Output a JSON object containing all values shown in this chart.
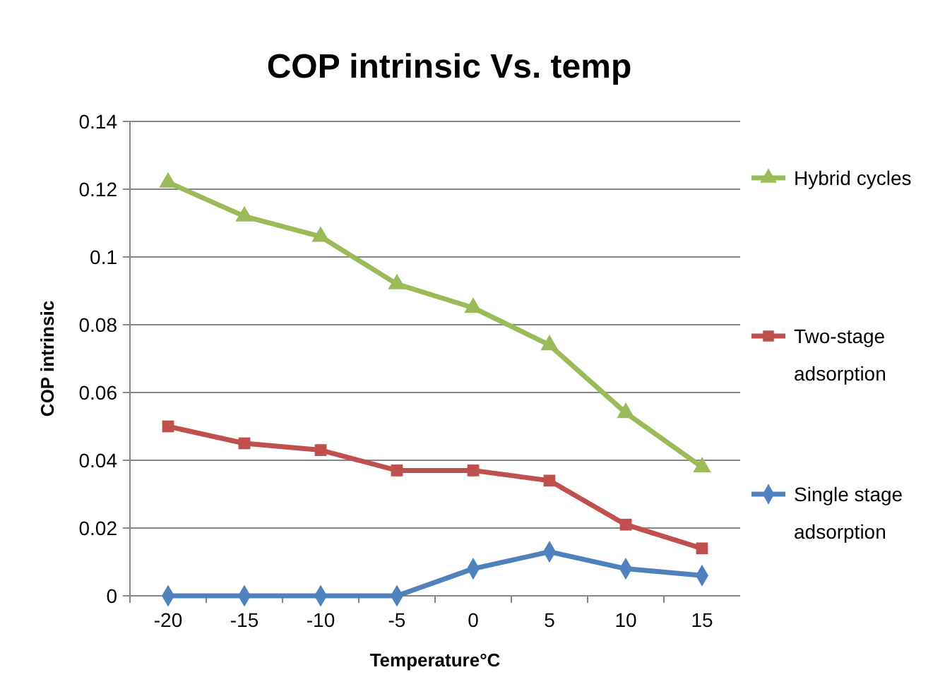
{
  "chart_data": {
    "type": "line",
    "title": "COP intrinsic Vs. temp",
    "xlabel": "Temperature°C",
    "ylabel": "COP intrinsic",
    "categories": [
      "-20",
      "-15",
      "-10",
      "-5",
      "0",
      "5",
      "10",
      "15"
    ],
    "series": [
      {
        "name": "Hybrid cycles",
        "color": "#9bbb59",
        "marker": "triangle",
        "values": [
          0.122,
          0.112,
          0.106,
          0.092,
          0.085,
          0.074,
          0.054,
          0.038
        ]
      },
      {
        "name": "Two-stage adsorption",
        "color": "#c0504d",
        "marker": "square",
        "values": [
          0.05,
          0.045,
          0.043,
          0.037,
          0.037,
          0.034,
          0.021,
          0.014
        ]
      },
      {
        "name": "Single stage adsorption",
        "color": "#4f81bd",
        "marker": "diamond",
        "values": [
          0,
          0,
          0,
          0,
          0.008,
          0.013,
          0.008,
          0.006
        ]
      }
    ],
    "ylim": [
      0,
      0.14
    ],
    "yticks": [
      0,
      0.02,
      0.04,
      0.06,
      0.08,
      0.1,
      0.12,
      0.14
    ],
    "grid": "y",
    "legend": "right",
    "line_style": "solid"
  }
}
